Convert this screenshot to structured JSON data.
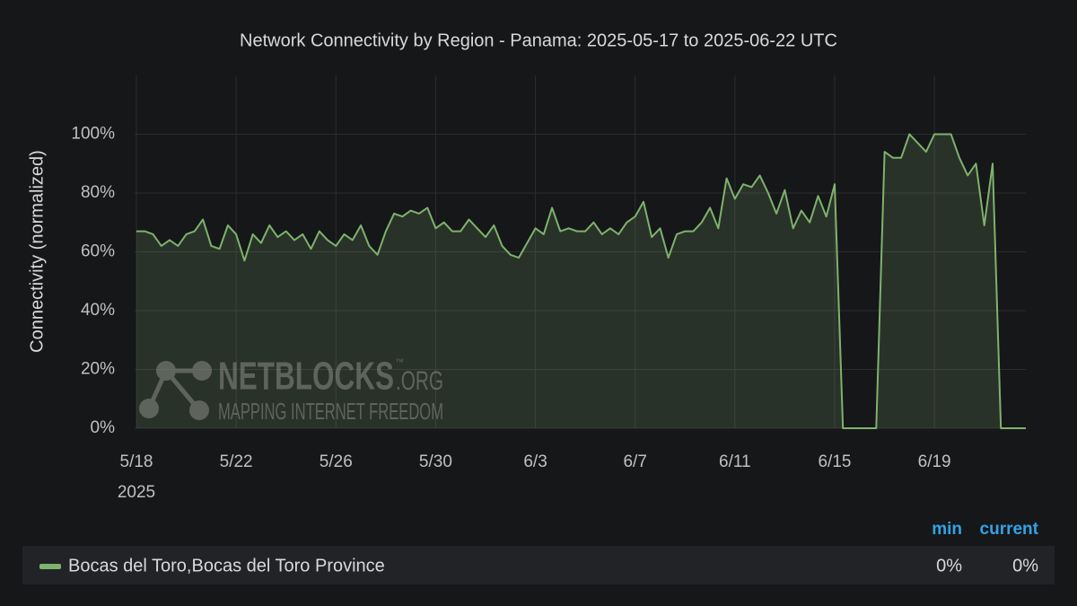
{
  "chart_data": {
    "type": "line",
    "title": "Network Connectivity by Region - Panama: 2025-05-17 to 2025-06-22 UTC",
    "y_label": "Connectivity (normalized)",
    "ylim": [
      0,
      120
    ],
    "yticks": [
      {
        "value": 0,
        "label": "0%"
      },
      {
        "value": 20,
        "label": "20%"
      },
      {
        "value": 40,
        "label": "40%"
      },
      {
        "value": 60,
        "label": "60%"
      },
      {
        "value": 80,
        "label": "80%"
      },
      {
        "value": 100,
        "label": "100%"
      }
    ],
    "xlim": [
      "2025-05-18T00:00",
      "2025-06-22T16:00"
    ],
    "xticks": [
      {
        "value": "2025-05-18",
        "label": "5/18"
      },
      {
        "value": "2025-05-22",
        "label": "5/22"
      },
      {
        "value": "2025-05-26",
        "label": "5/26"
      },
      {
        "value": "2025-05-30",
        "label": "5/30"
      },
      {
        "value": "2025-06-03",
        "label": "6/3"
      },
      {
        "value": "2025-06-07",
        "label": "6/7"
      },
      {
        "value": "2025-06-11",
        "label": "6/11"
      },
      {
        "value": "2025-06-15",
        "label": "6/15"
      },
      {
        "value": "2025-06-19",
        "label": "6/19"
      }
    ],
    "x_year": "2025",
    "grid": true,
    "legend_columns": [
      "min",
      "current"
    ],
    "watermark": {
      "name": "NETBLOCKS",
      "suffix": ".ORG",
      "mark": "™",
      "tagline": "MAPPING INTERNET FREEDOM"
    },
    "series": [
      {
        "name": "Bocas del Toro,Bocas del Toro Province",
        "color": "#7eb26d",
        "stats": [
          0,
          0
        ],
        "stats_labels": [
          "0%",
          "0%"
        ],
        "x": [
          "2025-05-18T00:00",
          "2025-05-18T08:00",
          "2025-05-18T16:00",
          "2025-05-19T00:00",
          "2025-05-19T08:00",
          "2025-05-19T16:00",
          "2025-05-20T00:00",
          "2025-05-20T08:00",
          "2025-05-20T16:00",
          "2025-05-21T00:00",
          "2025-05-21T08:00",
          "2025-05-21T16:00",
          "2025-05-22T00:00",
          "2025-05-22T08:00",
          "2025-05-22T16:00",
          "2025-05-23T00:00",
          "2025-05-23T08:00",
          "2025-05-23T16:00",
          "2025-05-24T00:00",
          "2025-05-24T08:00",
          "2025-05-24T16:00",
          "2025-05-25T00:00",
          "2025-05-25T08:00",
          "2025-05-25T16:00",
          "2025-05-26T00:00",
          "2025-05-26T08:00",
          "2025-05-26T16:00",
          "2025-05-27T00:00",
          "2025-05-27T08:00",
          "2025-05-27T16:00",
          "2025-05-28T00:00",
          "2025-05-28T08:00",
          "2025-05-28T16:00",
          "2025-05-29T00:00",
          "2025-05-29T08:00",
          "2025-05-29T16:00",
          "2025-05-30T00:00",
          "2025-05-30T08:00",
          "2025-05-30T16:00",
          "2025-05-31T00:00",
          "2025-05-31T08:00",
          "2025-05-31T16:00",
          "2025-06-01T00:00",
          "2025-06-01T08:00",
          "2025-06-01T16:00",
          "2025-06-02T00:00",
          "2025-06-02T08:00",
          "2025-06-02T16:00",
          "2025-06-03T00:00",
          "2025-06-03T08:00",
          "2025-06-03T16:00",
          "2025-06-04T00:00",
          "2025-06-04T08:00",
          "2025-06-04T16:00",
          "2025-06-05T00:00",
          "2025-06-05T08:00",
          "2025-06-05T16:00",
          "2025-06-06T00:00",
          "2025-06-06T08:00",
          "2025-06-06T16:00",
          "2025-06-07T00:00",
          "2025-06-07T08:00",
          "2025-06-07T16:00",
          "2025-06-08T00:00",
          "2025-06-08T08:00",
          "2025-06-08T16:00",
          "2025-06-09T00:00",
          "2025-06-09T08:00",
          "2025-06-09T16:00",
          "2025-06-10T00:00",
          "2025-06-10T08:00",
          "2025-06-10T16:00",
          "2025-06-11T00:00",
          "2025-06-11T08:00",
          "2025-06-11T16:00",
          "2025-06-12T00:00",
          "2025-06-12T08:00",
          "2025-06-12T16:00",
          "2025-06-13T00:00",
          "2025-06-13T08:00",
          "2025-06-13T16:00",
          "2025-06-14T00:00",
          "2025-06-14T08:00",
          "2025-06-14T16:00",
          "2025-06-15T00:00",
          "2025-06-15T08:00",
          "2025-06-15T16:00",
          "2025-06-16T00:00",
          "2025-06-16T08:00",
          "2025-06-16T16:00",
          "2025-06-17T00:00",
          "2025-06-17T08:00",
          "2025-06-17T16:00",
          "2025-06-18T00:00",
          "2025-06-18T08:00",
          "2025-06-18T16:00",
          "2025-06-19T00:00",
          "2025-06-19T08:00",
          "2025-06-19T16:00",
          "2025-06-20T00:00",
          "2025-06-20T08:00",
          "2025-06-20T16:00",
          "2025-06-21T00:00",
          "2025-06-21T08:00",
          "2025-06-21T16:00",
          "2025-06-22T00:00",
          "2025-06-22T08:00",
          "2025-06-22T16:00"
        ],
        "values": [
          67,
          67,
          66,
          62,
          64,
          62,
          66,
          67,
          71,
          62,
          61,
          69,
          66,
          57,
          66,
          63,
          69,
          65,
          67,
          64,
          66,
          61,
          67,
          64,
          62,
          66,
          64,
          69,
          62,
          59,
          67,
          73,
          72,
          74,
          73,
          75,
          68,
          70,
          67,
          67,
          71,
          68,
          65,
          69,
          62,
          59,
          58,
          63,
          68,
          66,
          75,
          67,
          68,
          67,
          67,
          70,
          66,
          68,
          66,
          70,
          72,
          77,
          65,
          68,
          58,
          66,
          67,
          67,
          70,
          75,
          68,
          85,
          78,
          83,
          82,
          86,
          80,
          73,
          81,
          68,
          74,
          70,
          79,
          72,
          83,
          0,
          0,
          0,
          0,
          0,
          94,
          92,
          92,
          100,
          97,
          94,
          100,
          100,
          100,
          92,
          86,
          90,
          69,
          90,
          0,
          0,
          0,
          0
        ]
      }
    ]
  }
}
